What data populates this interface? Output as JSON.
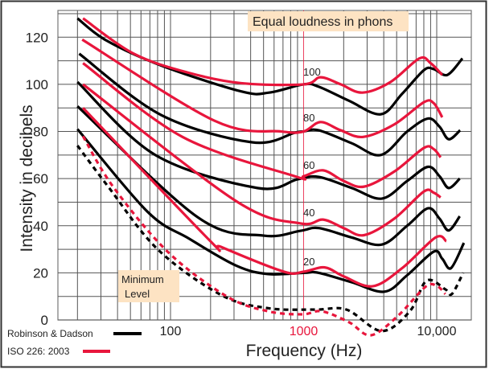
{
  "chart_data": {
    "type": "line",
    "xlabel": "Frequency (Hz)",
    "ylabel": "Intensity in decibels",
    "x_scale": "log",
    "xlim": [
      14,
      18000
    ],
    "ylim": [
      0,
      130
    ],
    "grid": true,
    "x_ticks": [
      {
        "value": 100,
        "label": "100"
      },
      {
        "value": 1000,
        "label": "1000",
        "color": "#e8163c"
      },
      {
        "value": 10000,
        "label": "10,000"
      }
    ],
    "y_ticks": [
      0,
      20,
      40,
      60,
      80,
      100,
      120
    ],
    "annotation_title": "Equal loudness in phons",
    "minimum_label": [
      "Minimum",
      "Level"
    ],
    "phon_labels": [
      {
        "text": "100",
        "value": 100
      },
      {
        "text": "80",
        "value": 80
      },
      {
        "text": "60",
        "value": 60
      },
      {
        "text": "40",
        "value": 40
      },
      {
        "text": "20",
        "value": 20
      }
    ],
    "legend": [
      {
        "name": "Robinson & Dadson",
        "color": "#000000"
      },
      {
        "name": "ISO 226: 2003",
        "color": "#e8163c"
      }
    ],
    "legend_placement": "bottom-left",
    "series": [
      {
        "standard": "Robinson & Dadson",
        "phon": 100,
        "color": "#000000",
        "dashed": false,
        "points": [
          [
            20,
            128
          ],
          [
            33,
            118.6
          ],
          [
            85,
            108
          ],
          [
            340,
            97
          ],
          [
            550,
            96.5
          ],
          [
            1000,
            100
          ],
          [
            1300,
            99
          ],
          [
            2200,
            93
          ],
          [
            3800,
            87.3
          ],
          [
            5500,
            96
          ],
          [
            8000,
            106
          ],
          [
            9500,
            106.5
          ],
          [
            12000,
            104
          ],
          [
            15600,
            111
          ]
        ]
      },
      {
        "standard": "ISO 226: 2003",
        "phon": 100,
        "color": "#e8163c",
        "dashed": false,
        "points": [
          [
            22,
            128
          ],
          [
            53,
            113
          ],
          [
            135,
            105
          ],
          [
            340,
            100.5
          ],
          [
            1000,
            100
          ],
          [
            1340,
            103
          ],
          [
            1900,
            100
          ],
          [
            2770,
            96.5
          ],
          [
            4500,
            101
          ],
          [
            7400,
            111
          ],
          [
            9000,
            109
          ],
          [
            11000,
            104
          ]
        ]
      },
      {
        "standard": "Robinson & Dadson",
        "phon": 80,
        "color": "#000000",
        "dashed": false,
        "points": [
          [
            20.6,
            113
          ],
          [
            85,
            87
          ],
          [
            410,
            75.4
          ],
          [
            860,
            79.5
          ],
          [
            1000,
            80
          ],
          [
            1300,
            80.5
          ],
          [
            2300,
            75
          ],
          [
            3800,
            70
          ],
          [
            6000,
            80
          ],
          [
            8600,
            85.5
          ],
          [
            10500,
            82
          ],
          [
            12300,
            76.7
          ],
          [
            15000,
            80.5
          ]
        ]
      },
      {
        "standard": "ISO 226: 2003",
        "phon": 80,
        "color": "#e8163c",
        "dashed": false,
        "points": [
          [
            21.7,
            119
          ],
          [
            215,
            84.5
          ],
          [
            680,
            80
          ],
          [
            1000,
            80
          ],
          [
            1340,
            84
          ],
          [
            1900,
            80.5
          ],
          [
            2800,
            77.7
          ],
          [
            4800,
            83
          ],
          [
            8000,
            92.4
          ],
          [
            9500,
            92
          ],
          [
            11000,
            86
          ]
        ]
      },
      {
        "standard": "Robinson & Dadson",
        "phon": 60,
        "color": "#000000",
        "dashed": false,
        "points": [
          [
            20,
            101
          ],
          [
            77,
            70
          ],
          [
            450,
            56
          ],
          [
            900,
            59.7
          ],
          [
            1300,
            60.7
          ],
          [
            2300,
            56
          ],
          [
            3870,
            51.5
          ],
          [
            6000,
            59
          ],
          [
            8600,
            65
          ],
          [
            10500,
            61
          ],
          [
            12300,
            56
          ],
          [
            14900,
            60
          ]
        ]
      },
      {
        "standard": "ISO 226: 2003",
        "phon": 60,
        "color": "#e8163c",
        "dashed": false,
        "points": [
          [
            22,
            109
          ],
          [
            123,
            77.7
          ],
          [
            860,
            61
          ],
          [
            1000,
            61
          ],
          [
            1400,
            63.5
          ],
          [
            2000,
            59
          ],
          [
            2850,
            56.6
          ],
          [
            4800,
            63
          ],
          [
            8000,
            73
          ],
          [
            9500,
            72.5
          ],
          [
            10700,
            69
          ]
        ]
      },
      {
        "standard": "Robinson & Dadson",
        "phon": 40,
        "color": "#000000",
        "dashed": false,
        "points": [
          [
            20,
            90.7
          ],
          [
            160,
            43.6
          ],
          [
            500,
            35.8
          ],
          [
            940,
            37.8
          ],
          [
            1300,
            39
          ],
          [
            2300,
            35
          ],
          [
            3870,
            32
          ],
          [
            6000,
            40
          ],
          [
            8600,
            47.4
          ],
          [
            10500,
            43
          ],
          [
            12300,
            38
          ],
          [
            14900,
            44
          ]
        ]
      },
      {
        "standard": "ISO 226: 2003",
        "phon": 40,
        "color": "#e8163c",
        "dashed": false,
        "points": [
          [
            22,
            100
          ],
          [
            310,
            50.5
          ],
          [
            940,
            41
          ],
          [
            1400,
            42.6
          ],
          [
            2000,
            39
          ],
          [
            2850,
            36
          ],
          [
            4800,
            43
          ],
          [
            8000,
            54.5
          ],
          [
            9500,
            54
          ],
          [
            10700,
            52
          ]
        ]
      },
      {
        "standard": "Robinson & Dadson",
        "phon": 20,
        "color": "#000000",
        "dashed": false,
        "points": [
          [
            20,
            81
          ],
          [
            67,
            46
          ],
          [
            138,
            34.5
          ],
          [
            313,
            23
          ],
          [
            540,
            19.5
          ],
          [
            1000,
            20
          ],
          [
            1300,
            20
          ],
          [
            2300,
            16
          ],
          [
            4050,
            12
          ],
          [
            6000,
            19
          ],
          [
            9500,
            29
          ],
          [
            11000,
            26
          ],
          [
            12800,
            22
          ],
          [
            16000,
            32.7
          ]
        ]
      },
      {
        "standard": "ISO 226: 2003",
        "phon": 20,
        "color": "#e8163c",
        "dashed": false,
        "points": [
          [
            22,
            90
          ],
          [
            195,
            34
          ],
          [
            240,
            31
          ],
          [
            710,
            20.5
          ],
          [
            1000,
            20.5
          ],
          [
            1440,
            22.3
          ],
          [
            2000,
            18.5
          ],
          [
            3300,
            14.3
          ],
          [
            5500,
            22
          ],
          [
            9800,
            35
          ],
          [
            11800,
            33.4
          ]
        ]
      },
      {
        "standard": "Robinson & Dadson",
        "phon": "minimum",
        "color": "#000000",
        "dashed": true,
        "points": [
          [
            20,
            74
          ],
          [
            34,
            56.6
          ],
          [
            80,
            30
          ],
          [
            240,
            10.6
          ],
          [
            540,
            5
          ],
          [
            1220,
            4.4
          ],
          [
            2100,
            4.4
          ],
          [
            3860,
            -4.7
          ],
          [
            6300,
            3.8
          ],
          [
            8400,
            16.7
          ],
          [
            11600,
            13
          ],
          [
            13000,
            11
          ],
          [
            15800,
            20
          ]
        ]
      },
      {
        "standard": "ISO 226: 2003",
        "phon": "minimum",
        "color": "#e8163c",
        "dashed": true,
        "points": [
          [
            22,
            78
          ],
          [
            37,
            56.6
          ],
          [
            95,
            29
          ],
          [
            265,
            10
          ],
          [
            540,
            3.7
          ],
          [
            980,
            2.4
          ],
          [
            1370,
            3.7
          ],
          [
            2200,
            -1
          ],
          [
            3200,
            -6.5
          ],
          [
            5100,
            1.7
          ],
          [
            8200,
            14
          ],
          [
            10000,
            14.5
          ],
          [
            11600,
            11
          ]
        ]
      }
    ]
  }
}
